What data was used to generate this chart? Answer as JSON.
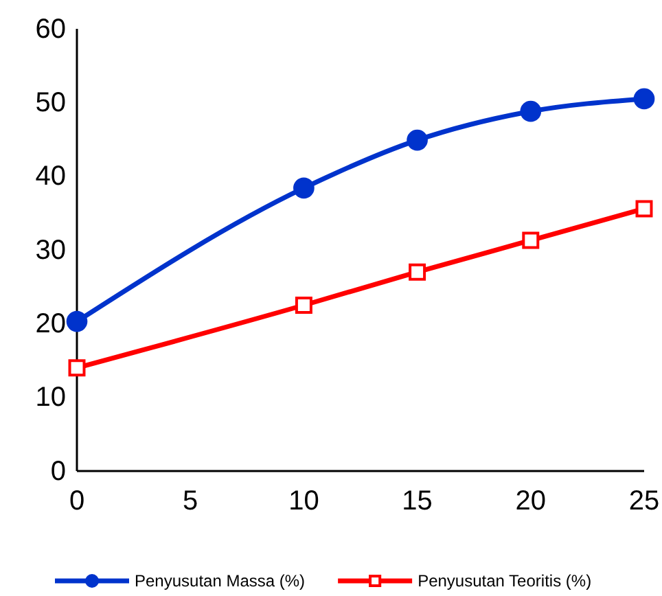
{
  "chart_data": {
    "type": "line",
    "x": [
      0,
      10,
      15,
      20,
      25
    ],
    "series": [
      {
        "name": "Penyusutan Massa (%)",
        "color": "#0033cc",
        "marker": "circle",
        "values": [
          20.3,
          38.4,
          44.9,
          48.8,
          50.5
        ]
      },
      {
        "name": "Penyusutan Teoritis (%)",
        "color": "#ff0000",
        "marker": "square",
        "values": [
          14.0,
          22.5,
          27.0,
          31.3,
          35.6
        ]
      }
    ],
    "xlim": [
      0,
      25
    ],
    "xticks": [
      0,
      5,
      10,
      15,
      20,
      25
    ],
    "ylim": [
      0,
      60
    ],
    "yticks": [
      0,
      10,
      20,
      30,
      40,
      50,
      60
    ],
    "grid": false,
    "legend": "bottom",
    "line_style": "solid"
  }
}
